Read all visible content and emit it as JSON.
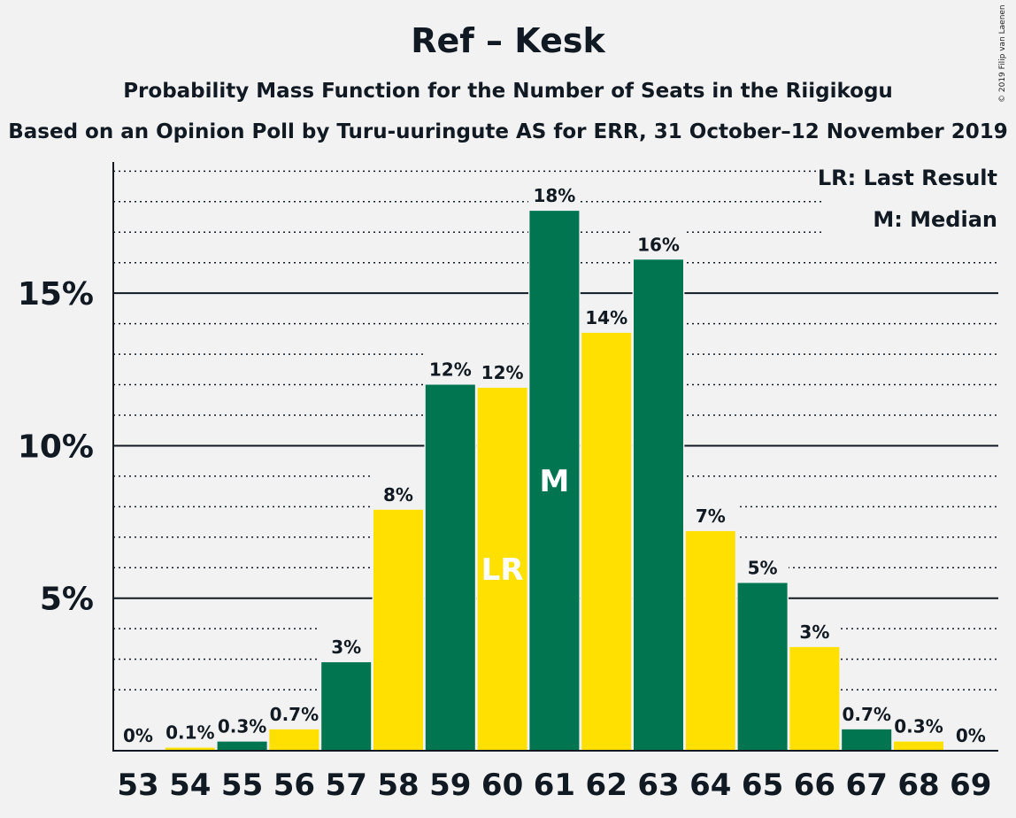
{
  "chart_data": {
    "type": "bar",
    "title": "Ref – Kesk",
    "subtitle": "Probability Mass Function for the Number of Seats in the Riigikogu",
    "subtitle2": "Based on an Opinion Poll by Turu-uuringute AS for ERR, 31 October–12 November 2019",
    "copyright": "© 2019 Filip van Laenen",
    "categories": [
      "53",
      "54",
      "55",
      "56",
      "57",
      "58",
      "59",
      "60",
      "61",
      "62",
      "63",
      "64",
      "65",
      "66",
      "67",
      "68",
      "69"
    ],
    "values": [
      0.0,
      0.1,
      0.3,
      0.7,
      2.9,
      7.9,
      12.0,
      11.9,
      17.7,
      13.7,
      16.1,
      7.2,
      5.5,
      3.4,
      0.7,
      0.3,
      0.0
    ],
    "value_labels": [
      "0%",
      "0.1%",
      "0.3%",
      "0.7%",
      "3%",
      "8%",
      "12%",
      "12%",
      "18%",
      "14%",
      "16%",
      "7%",
      "5%",
      "3%",
      "0.7%",
      "0.3%",
      "0%"
    ],
    "bar_colors": [
      "#007550",
      "#ffe000",
      "#007550",
      "#ffe000",
      "#007550",
      "#ffe000",
      "#007550",
      "#ffe000",
      "#007550",
      "#ffe000",
      "#007550",
      "#ffe000",
      "#007550",
      "#ffe000",
      "#007550",
      "#ffe000",
      "#007550"
    ],
    "markers": [
      {
        "category": "60",
        "text": "LR"
      },
      {
        "category": "61",
        "text": "M"
      }
    ],
    "yticks": [
      5,
      10,
      15
    ],
    "ytick_labels": [
      "5%",
      "10%",
      "15%"
    ],
    "minor_grid_step": 1,
    "ylim": [
      0,
      19.3
    ],
    "grid": "dotted minor, solid major",
    "legend": {
      "position": "top-right",
      "items": [
        "LR: Last Result",
        "M: Median"
      ]
    },
    "colors": {
      "green": "#007550",
      "yellow": "#ffe000",
      "text": "#111a22",
      "background": "#f2f2f2"
    }
  }
}
